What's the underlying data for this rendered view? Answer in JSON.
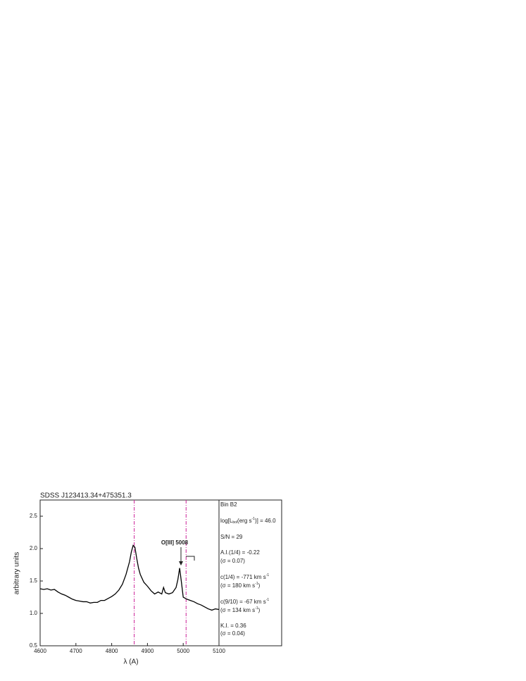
{
  "chart_data": {
    "type": "line",
    "title": "SDSS J123413.34+475351.3",
    "x_label": "λ (A)",
    "y_label": "arbitrary units",
    "xlim": [
      4600,
      5100
    ],
    "xticks": [
      4600,
      4700,
      4800,
      4900,
      5000,
      5100
    ],
    "ylim": [
      0.5,
      2.75
    ],
    "yticks": [
      {
        "value": 0.5,
        "label": "0.5"
      },
      {
        "value": 1,
        "label": "1.0"
      },
      {
        "value": 1.5,
        "label": "1.5"
      },
      {
        "value": 2,
        "label": "2.0"
      },
      {
        "value": 2.5,
        "label": "2.5"
      }
    ],
    "series": [
      {
        "color": "#000000",
        "x": [
          4600,
          4610,
          4620,
          4630,
          4640,
          4650,
          4660,
          4670,
          4680,
          4690,
          4700,
          4710,
          4720,
          4730,
          4740,
          4750,
          4760,
          4770,
          4780,
          4790,
          4800,
          4810,
          4820,
          4830,
          4840,
          4850,
          4855,
          4860,
          4865,
          4870,
          4875,
          4880,
          4890,
          4900,
          4910,
          4920,
          4930,
          4940,
          4945,
          4950,
          4960,
          4970,
          4980,
          4985,
          4990,
          4995,
          5000,
          5010,
          5020,
          5030,
          5040,
          5050,
          5060,
          5070,
          5080,
          5090,
          5100
        ],
        "values": [
          1.38,
          1.37,
          1.38,
          1.36,
          1.37,
          1.33,
          1.3,
          1.28,
          1.25,
          1.22,
          1.2,
          1.19,
          1.18,
          1.18,
          1.16,
          1.17,
          1.17,
          1.2,
          1.2,
          1.23,
          1.26,
          1.3,
          1.36,
          1.45,
          1.6,
          1.8,
          1.95,
          2.05,
          2.02,
          1.85,
          1.7,
          1.6,
          1.48,
          1.42,
          1.35,
          1.3,
          1.33,
          1.3,
          1.4,
          1.32,
          1.3,
          1.32,
          1.4,
          1.52,
          1.7,
          1.48,
          1.25,
          1.22,
          1.2,
          1.18,
          1.15,
          1.13,
          1.1,
          1.07,
          1.05,
          1.07,
          1.06
        ]
      }
    ],
    "vlines": [
      {
        "x": 4863,
        "color": "#cc2299"
      },
      {
        "x": 5008,
        "color": "#cc2299"
      }
    ],
    "annotation": "O[III] 5008",
    "panel": [
      [
        {
          "t": "Bin B2"
        }
      ],
      [
        {
          "t": "log[L"
        },
        {
          "sub": "bol"
        },
        {
          "t": "(erg s"
        },
        {
          "sup": "-1"
        },
        {
          "t": ")] = 46.0"
        }
      ],
      [
        {
          "t": "S/N = 29"
        }
      ],
      [
        {
          "t": "A.I.(1/4) = -0.22"
        }
      ],
      [
        {
          "t": "(σ = 0.07)"
        }
      ],
      [
        {
          "t": "c(1/4) = -771 km s"
        },
        {
          "sup": "-1"
        }
      ],
      [
        {
          "t": "(σ = 180 km s"
        },
        {
          "sup": "-1"
        },
        {
          "t": ")"
        }
      ],
      [
        {
          "t": "c(9/10) = -67 km s"
        },
        {
          "sup": "-1"
        }
      ],
      [
        {
          "t": "(σ = 134 km s"
        },
        {
          "sup": "-1"
        },
        {
          "t": ")"
        }
      ],
      [
        {
          "t": "K.I. = 0.36"
        }
      ],
      [
        {
          "t": "(σ = 0.04)"
        }
      ]
    ]
  }
}
